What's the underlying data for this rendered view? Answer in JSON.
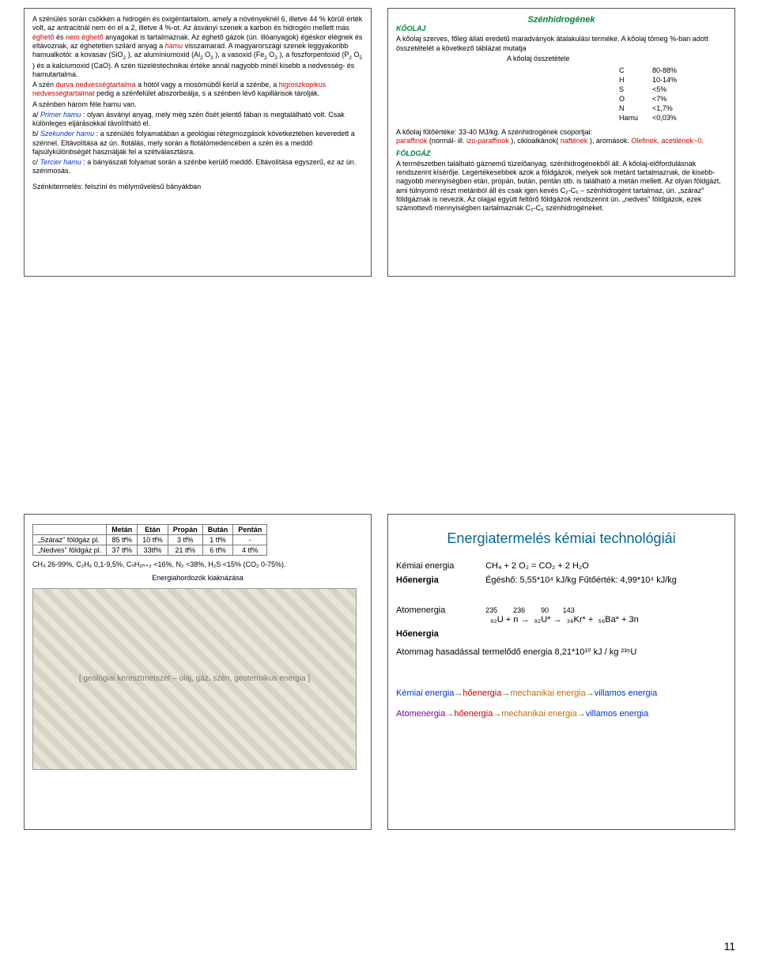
{
  "page_number": "11",
  "tl": {
    "p1a": "A szénülés során csökken a hidrogén és oxigéntartalom, amely a növényeknél 6, illetve 44 % körüli érték volt, az antracitnál nem éri el a 2, illetve 4 %-ot. Az ásványi szenek a karbon és hidrogén mellett más ",
    "p1b": "éghető",
    "p1c": " és ",
    "p1d": "nem éghető",
    "p1e": " anyagokat is tartalmaznak. Az éghető gázok (ún. illóanyagok) égéskor elégnek és eltávoznak, az éghetetlen szilárd anyag a ",
    "p1f": "hamu",
    "p1g": " visszamarad. A magyarországi szenek leggyakoribb hamualkotói: a kovasav (SiO",
    "p1g2": "), az alumíniumoxid (Al",
    "p1g3": "O",
    "p1g4": "), a vasoxid (Fe",
    "p1g5": "O",
    "p1g6": "), a foszforpentoxid (P",
    "p1g7": "O",
    "p1g8": ") és a kalciumoxid (CaO). A szén tüzeléstechnikai értéke annál nagyobb minél kisebb a nedvesség- és hamutartalma.",
    "p2a": "A szén ",
    "p2b": "durva nedvességtartalma",
    "p2c": " a hótól vagy a mosómúből kerül a szénbe, a ",
    "p2d": "higroszkopikus nedvességtartalmat",
    "p2e": " pedig a szénfelület abszorbeálja, s a szénben lévő kapillárisok tárolják.",
    "p3": "A szénben három féle hamu van.",
    "p4a": "a/ ",
    "p4b": "Primer hamu",
    "p4c": ": olyan ásványi anyag, mely még szén ősét jelentő fában is megtalálható volt. Csak különleges eljárásokkal távolítható el.",
    "p5a": "b/ ",
    "p5b": "Szekunder hamu",
    "p5c": ": a szénülés folyamatában a geológiai rétegmozgások következtében keveredett a szénnel. Eltávolítása az ún. flotálás, mely során a flotálómedencében a szén és a meddő fajsúlykülönbségét használják fel a szétválasztásra.",
    "p6a": "c/ ",
    "p6b": "Tercier hamu",
    "p6c": ": a bányászati folyamat során a szénbe kerülő meddő. Eltávolítása egyszerű, ez az ún. szénmosás.",
    "p7": "Szénkitermelés: felszíni és mélyművelésű bányákban"
  },
  "tr": {
    "title": "Szénhidrogének",
    "h1": "KŐOLAJ",
    "p1": "A kőolaj szerves, főleg állati eredetű maradványok átalakulási terméke. A kőolaj tömeg %-ban adott összetételét a következő táblázat mutatja",
    "comp_title": "A kőolaj összetétele",
    "comp": [
      [
        "C",
        "80-88%"
      ],
      [
        "H",
        "10-14%"
      ],
      [
        "S",
        "<5%"
      ],
      [
        "O",
        "<7%"
      ],
      [
        "N",
        "<1,7%"
      ],
      [
        "Hamu",
        "<0,03%"
      ]
    ],
    "p2a": "A kőolaj fűtőértéke: 33-40 MJ/kg. A szénhidrogének csoportjai:",
    "p2b": "paraffinok",
    "p2c": " (normál- ill. ",
    "p2d": "izo-paraffinok",
    "p2e": "), cikloalkánok(",
    "p2f": "naftének",
    "p2g": "), aromások. ",
    "p2h": "Olefinek, acetilének~0.",
    "h2": "FÖLDGÁZ",
    "p3": "A természetben található gáznemű tüzelőanyag, szénhidrogénekből áll. A kőolaj-előfordulásnak rendszerint kísérője. Legértékesebbek azok a földgázok, melyek sok metánt tartalmaznak, de kisebb-nagyobb mennyiségben etán, propán, bután, pentán stb. is található a metán mellett. Az olyan földgázt, ami túlnyomó részt metánból áll és csak igen kevés C₂-C₆ – szénhidrogént tartalmaz, ún. „száraz\" földgáznak is nevezik. Az olajjal együtt feltörő földgázok rendszerint ún. „nedves\" földgázok, ezek számottevő mennyiségben tartalmaznak C₂-C₆ szénhidrogéneket."
  },
  "bl": {
    "table": {
      "headers": [
        "",
        "Metán",
        "Etán",
        "Propán",
        "Bután",
        "Pentán"
      ],
      "rows": [
        [
          "„Száraz\" földgáz pl.",
          "85 tf%",
          "10 tf%",
          "3 tf%",
          "1 tf%",
          "-"
        ],
        [
          "„Nedves\" földgáz pl.",
          "37 tf%",
          "33tf%",
          "21 tf%",
          "6 tf%",
          "4 tf%"
        ]
      ]
    },
    "line": "CH₄ 26-99%, C₂H₆ 0,1-9,5%, CₙH₂ₙ₊₂ <16%, N₂ <38%, H₂S <15% (CO₂ 0-75%).",
    "caption": "Energiahordozók kiaknázása",
    "img_placeholder": "[ geológiai keresztmetszet – olaj, gáz, szén, geotermikus energia ]"
  },
  "br": {
    "title": "Energiatermelés kémiai technológiái",
    "r1a": "Kémiai energia",
    "r1b": "CH₄ + 2 O₂ = CO₂ + 2 H₂O",
    "r2a": "Hőenergia",
    "r2b": "Égéshő: 5,55*10⁴ kJ/kg  Fűtőérték: 4,99*10⁴ kJ/kg",
    "r3a": "Atomenergia",
    "r3b_top": "235        236        90       143",
    "r3b": "  ₉₂U + n →  ₉₂U* →  ₃₆Kr* +  ₅₆Ba* + 3n",
    "r4a": "Hőenergia",
    "r5": "Atommag hasadással termelődő energia  8,21*10¹⁰ kJ / kg ²³⁵U",
    "chain1": [
      "Kémiai energia",
      "hőenergia",
      "mechanikai energia",
      "villamos energia"
    ],
    "chain2": [
      "Atomenergia",
      "hőenergia",
      "mechanikai energia",
      "villamos energia"
    ],
    "chain1_colors": [
      "#0033cc",
      "#cc0000",
      "#cc6600",
      "#0033cc"
    ],
    "chain2_colors": [
      "#8000a0",
      "#cc0000",
      "#cc6600",
      "#0033cc"
    ]
  }
}
